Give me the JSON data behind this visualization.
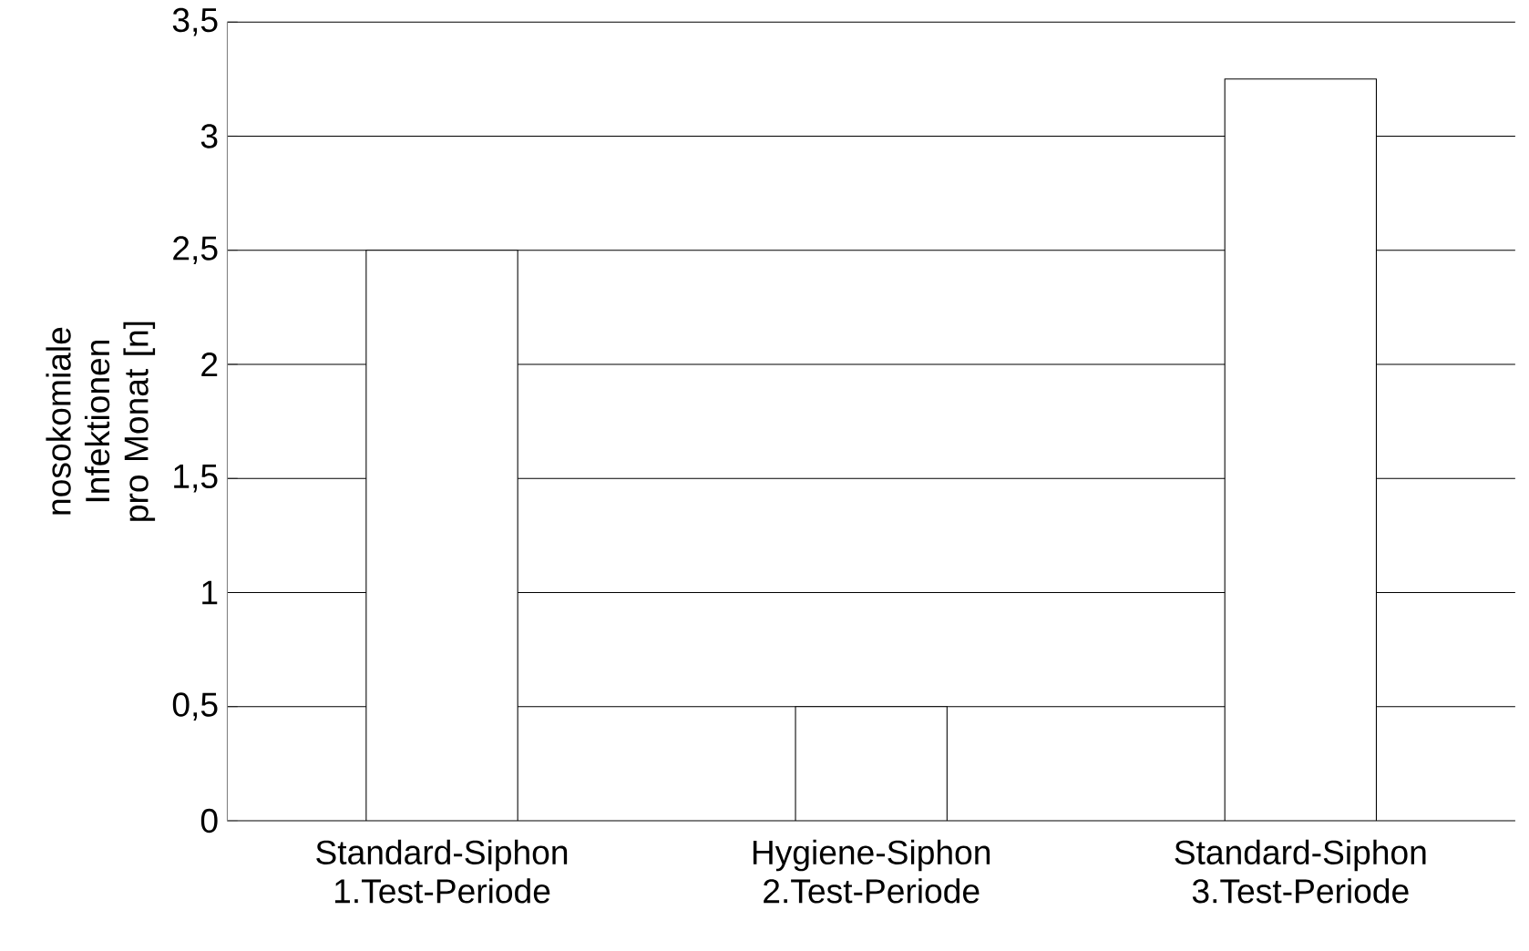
{
  "chart_data": {
    "type": "bar",
    "ylabel": "nosokomiale Infektionen pro Monat [n]",
    "categories": [
      "Standard-Siphon 1.Test-Periode",
      "Hygiene-Siphon 2.Test-Periode",
      "Standard-Siphon 3.Test-Periode"
    ],
    "values": [
      2.5,
      0.5,
      3.25
    ],
    "color": "#ffffff",
    "ylim": [
      0,
      3.5
    ],
    "yticks": [
      0,
      {
        "value": 0.5,
        "label": "0,5"
      },
      1,
      {
        "value": 1.5,
        "label": "1,5"
      },
      2,
      {
        "value": 2.5,
        "label": "2,5"
      },
      3,
      {
        "value": 3.5,
        "label": "3,5"
      }
    ],
    "grid": "y"
  }
}
